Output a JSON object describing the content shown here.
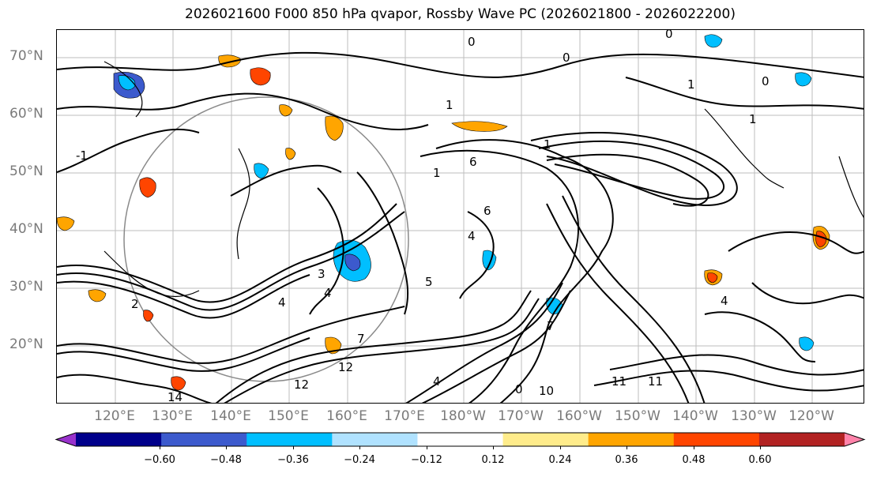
{
  "figure": {
    "title": "2026021600 F000 850 hPa qvapor, Rossby Wave PC (2026021800 - 2026022200)"
  },
  "map": {
    "lat_labels": [
      "70°N",
      "60°N",
      "50°N",
      "40°N",
      "30°N",
      "20°N"
    ],
    "lon_labels": [
      "120°E",
      "130°E",
      "140°E",
      "150°E",
      "160°E",
      "170°E",
      "180°W",
      "170°W",
      "160°W",
      "150°W",
      "140°W",
      "130°W",
      "120°W"
    ],
    "contour_labels": [
      "0",
      "0",
      "1",
      "0",
      "0",
      "1",
      "1",
      "-1",
      "1",
      "6",
      "1",
      "3",
      "4",
      "5",
      "4",
      "6",
      "7",
      "12",
      "12",
      "14",
      "10",
      "11",
      "11",
      "4",
      "4",
      "2",
      "4",
      "7",
      "0"
    ]
  },
  "colorbar": {
    "colors": [
      "#9932cc",
      "#00008b",
      "#3c5acd",
      "#00bfff",
      "#b0e2ff",
      "#ffffff",
      "#ffec8b",
      "#ffa500",
      "#ff4500",
      "#b22222",
      "#ff83aa"
    ],
    "tick_labels": [
      "−0.60",
      "−0.48",
      "−0.36",
      "−0.24",
      "−0.12",
      "0.12",
      "0.24",
      "0.36",
      "0.48",
      "0.60"
    ]
  }
}
